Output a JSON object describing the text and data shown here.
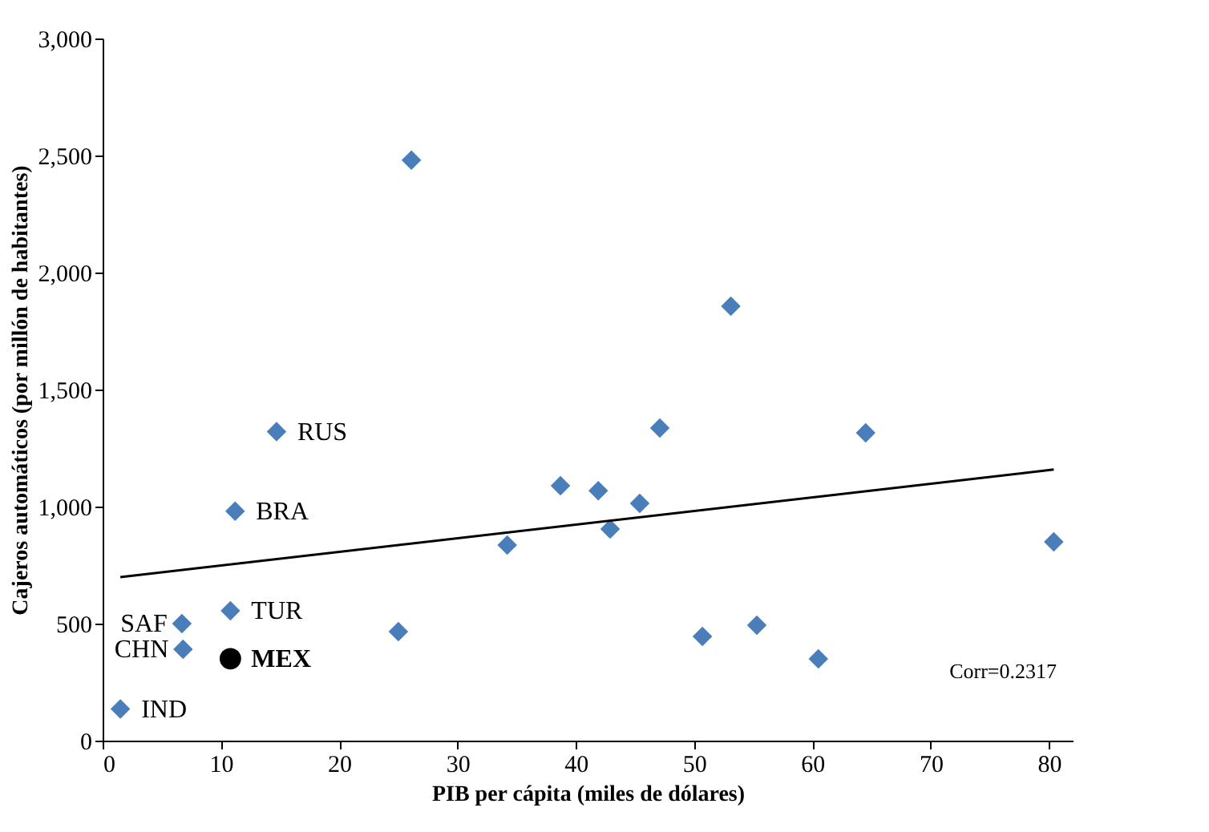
{
  "chart_data": {
    "type": "scatter",
    "xlabel": "PIB per cápita (miles de dólares)",
    "ylabel": "Cajeros automáticos (por millón de habitantes)",
    "xlim": [
      0,
      82
    ],
    "xticks": [
      0,
      10,
      20,
      30,
      40,
      50,
      60,
      70,
      80
    ],
    "ylim": [
      0,
      3000
    ],
    "yticks": [
      0,
      {
        "value": 500,
        "label": "500"
      },
      {
        "value": 1000,
        "label": "1,000"
      },
      {
        "value": 1500,
        "label": "1,500"
      },
      {
        "value": 2000,
        "label": "2,000"
      },
      {
        "value": 2500,
        "label": "2,500"
      },
      {
        "value": 3000,
        "label": "3,000"
      }
    ],
    "grid": false,
    "series": [
      {
        "type": "scatter",
        "marker": "diamond",
        "color": "#4a7ebb",
        "x": [
          1.5,
          6.8,
          6.7,
          10.8,
          11.2,
          14.7,
          25,
          26.1,
          34.2,
          38.7,
          41.9,
          42.9,
          45.4,
          47.1,
          50.7,
          53.1,
          55.3,
          60.5,
          64.5,
          80.4
        ],
        "values": [
          135,
          390,
          500,
          555,
          980,
          1320,
          466,
          2480,
          836,
          1089,
          1068,
          904,
          1014,
          1336,
          445,
          1856,
          493,
          349,
          1315,
          849
        ]
      },
      {
        "type": "scatter",
        "marker": "circle",
        "color": "#000000",
        "x": [
          10.8
        ],
        "values": [
          350
        ]
      },
      {
        "type": "line",
        "color": "#000000",
        "x": [
          1.5,
          80.4
        ],
        "values": [
          699,
          1158
        ]
      }
    ],
    "annotations": [
      {
        "text": "IND",
        "x": 1.5,
        "y": 135
      },
      {
        "text": "CHN",
        "x": 6.8,
        "y": 390
      },
      {
        "text": "SAF",
        "x": 6.7,
        "y": 500
      },
      {
        "text": "TUR",
        "x": 10.8,
        "y": 555
      },
      {
        "text": "MEX",
        "x": 10.8,
        "y": 350
      },
      {
        "text": "BRA",
        "x": 11.2,
        "y": 980
      },
      {
        "text": "RUS",
        "x": 14.7,
        "y": 1320
      },
      "Corr=0.2317"
    ]
  }
}
